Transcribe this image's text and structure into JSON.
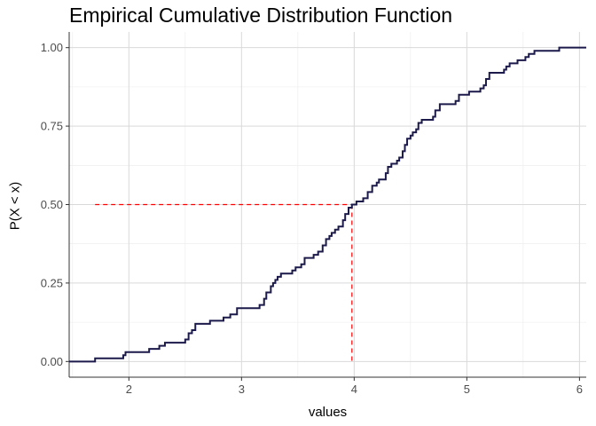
{
  "chart_data": {
    "type": "line",
    "title": "Empirical Cumulative Distribution Function",
    "xlabel": "values",
    "ylabel": "P(X < x)",
    "xlim": [
      1.47,
      6.06
    ],
    "ylim": [
      -0.05,
      1.05
    ],
    "x_ticks": [
      2,
      3,
      4,
      5,
      6
    ],
    "y_ticks": [
      0.0,
      0.25,
      0.5,
      0.75,
      1.0
    ],
    "x_tick_labels": [
      "2",
      "3",
      "4",
      "5",
      "6"
    ],
    "y_tick_labels": [
      "0.00",
      "0.25",
      "0.50",
      "0.75",
      "1.00"
    ],
    "grid": true,
    "legend": "none",
    "series": [
      {
        "color": "#1c1a4a",
        "step": true,
        "points": [
          [
            1.47,
            0.0
          ],
          [
            1.7,
            0.0
          ],
          [
            1.7,
            0.01
          ],
          [
            1.95,
            0.01
          ],
          [
            1.95,
            0.02
          ],
          [
            1.97,
            0.02
          ],
          [
            1.97,
            0.03
          ],
          [
            2.18,
            0.03
          ],
          [
            2.18,
            0.04
          ],
          [
            2.27,
            0.04
          ],
          [
            2.27,
            0.05
          ],
          [
            2.32,
            0.05
          ],
          [
            2.32,
            0.06
          ],
          [
            2.5,
            0.06
          ],
          [
            2.5,
            0.07
          ],
          [
            2.53,
            0.07
          ],
          [
            2.53,
            0.09
          ],
          [
            2.56,
            0.09
          ],
          [
            2.56,
            0.1
          ],
          [
            2.59,
            0.1
          ],
          [
            2.59,
            0.12
          ],
          [
            2.72,
            0.12
          ],
          [
            2.72,
            0.13
          ],
          [
            2.84,
            0.13
          ],
          [
            2.84,
            0.14
          ],
          [
            2.9,
            0.14
          ],
          [
            2.9,
            0.15
          ],
          [
            2.96,
            0.15
          ],
          [
            2.96,
            0.17
          ],
          [
            3.16,
            0.17
          ],
          [
            3.16,
            0.18
          ],
          [
            3.2,
            0.18
          ],
          [
            3.2,
            0.2
          ],
          [
            3.22,
            0.2
          ],
          [
            3.22,
            0.22
          ],
          [
            3.26,
            0.22
          ],
          [
            3.26,
            0.24
          ],
          [
            3.28,
            0.24
          ],
          [
            3.28,
            0.25
          ],
          [
            3.3,
            0.25
          ],
          [
            3.3,
            0.26
          ],
          [
            3.32,
            0.26
          ],
          [
            3.32,
            0.27
          ],
          [
            3.35,
            0.27
          ],
          [
            3.35,
            0.28
          ],
          [
            3.45,
            0.28
          ],
          [
            3.45,
            0.29
          ],
          [
            3.48,
            0.29
          ],
          [
            3.48,
            0.3
          ],
          [
            3.53,
            0.3
          ],
          [
            3.53,
            0.31
          ],
          [
            3.56,
            0.31
          ],
          [
            3.56,
            0.33
          ],
          [
            3.64,
            0.33
          ],
          [
            3.64,
            0.34
          ],
          [
            3.68,
            0.34
          ],
          [
            3.68,
            0.35
          ],
          [
            3.72,
            0.35
          ],
          [
            3.72,
            0.37
          ],
          [
            3.75,
            0.37
          ],
          [
            3.75,
            0.39
          ],
          [
            3.78,
            0.39
          ],
          [
            3.78,
            0.4
          ],
          [
            3.8,
            0.4
          ],
          [
            3.8,
            0.41
          ],
          [
            3.83,
            0.41
          ],
          [
            3.83,
            0.42
          ],
          [
            3.86,
            0.42
          ],
          [
            3.86,
            0.43
          ],
          [
            3.9,
            0.43
          ],
          [
            3.9,
            0.45
          ],
          [
            3.92,
            0.45
          ],
          [
            3.92,
            0.47
          ],
          [
            3.95,
            0.47
          ],
          [
            3.95,
            0.49
          ],
          [
            3.98,
            0.49
          ],
          [
            3.98,
            0.5
          ],
          [
            4.02,
            0.5
          ],
          [
            4.02,
            0.51
          ],
          [
            4.08,
            0.51
          ],
          [
            4.08,
            0.52
          ],
          [
            4.12,
            0.52
          ],
          [
            4.12,
            0.54
          ],
          [
            4.16,
            0.54
          ],
          [
            4.16,
            0.56
          ],
          [
            4.2,
            0.56
          ],
          [
            4.2,
            0.57
          ],
          [
            4.22,
            0.57
          ],
          [
            4.22,
            0.58
          ],
          [
            4.28,
            0.58
          ],
          [
            4.28,
            0.6
          ],
          [
            4.3,
            0.6
          ],
          [
            4.3,
            0.62
          ],
          [
            4.33,
            0.62
          ],
          [
            4.33,
            0.63
          ],
          [
            4.38,
            0.63
          ],
          [
            4.38,
            0.64
          ],
          [
            4.4,
            0.64
          ],
          [
            4.4,
            0.65
          ],
          [
            4.43,
            0.65
          ],
          [
            4.43,
            0.67
          ],
          [
            4.45,
            0.67
          ],
          [
            4.45,
            0.69
          ],
          [
            4.47,
            0.69
          ],
          [
            4.47,
            0.71
          ],
          [
            4.5,
            0.71
          ],
          [
            4.5,
            0.72
          ],
          [
            4.52,
            0.72
          ],
          [
            4.52,
            0.73
          ],
          [
            4.55,
            0.73
          ],
          [
            4.55,
            0.74
          ],
          [
            4.57,
            0.74
          ],
          [
            4.57,
            0.76
          ],
          [
            4.6,
            0.76
          ],
          [
            4.6,
            0.77
          ],
          [
            4.7,
            0.77
          ],
          [
            4.7,
            0.78
          ],
          [
            4.72,
            0.78
          ],
          [
            4.72,
            0.8
          ],
          [
            4.76,
            0.8
          ],
          [
            4.76,
            0.82
          ],
          [
            4.9,
            0.82
          ],
          [
            4.9,
            0.83
          ],
          [
            4.93,
            0.83
          ],
          [
            4.93,
            0.85
          ],
          [
            5.02,
            0.85
          ],
          [
            5.02,
            0.86
          ],
          [
            5.12,
            0.86
          ],
          [
            5.12,
            0.87
          ],
          [
            5.15,
            0.87
          ],
          [
            5.15,
            0.88
          ],
          [
            5.17,
            0.88
          ],
          [
            5.17,
            0.9
          ],
          [
            5.2,
            0.9
          ],
          [
            5.2,
            0.92
          ],
          [
            5.33,
            0.92
          ],
          [
            5.33,
            0.93
          ],
          [
            5.35,
            0.93
          ],
          [
            5.35,
            0.94
          ],
          [
            5.38,
            0.94
          ],
          [
            5.38,
            0.95
          ],
          [
            5.45,
            0.95
          ],
          [
            5.45,
            0.96
          ],
          [
            5.52,
            0.96
          ],
          [
            5.52,
            0.97
          ],
          [
            5.55,
            0.97
          ],
          [
            5.55,
            0.98
          ],
          [
            5.6,
            0.98
          ],
          [
            5.6,
            0.99
          ],
          [
            5.82,
            0.99
          ],
          [
            5.82,
            1.0
          ],
          [
            6.06,
            1.0
          ]
        ]
      }
    ],
    "reference_lines": [
      {
        "color": "#ff0000",
        "dashed": true,
        "points": [
          [
            1.7,
            0.5
          ],
          [
            3.98,
            0.5
          ]
        ]
      },
      {
        "color": "#ff0000",
        "dashed": true,
        "points": [
          [
            3.98,
            0.5
          ],
          [
            3.98,
            0.0
          ]
        ]
      }
    ]
  }
}
